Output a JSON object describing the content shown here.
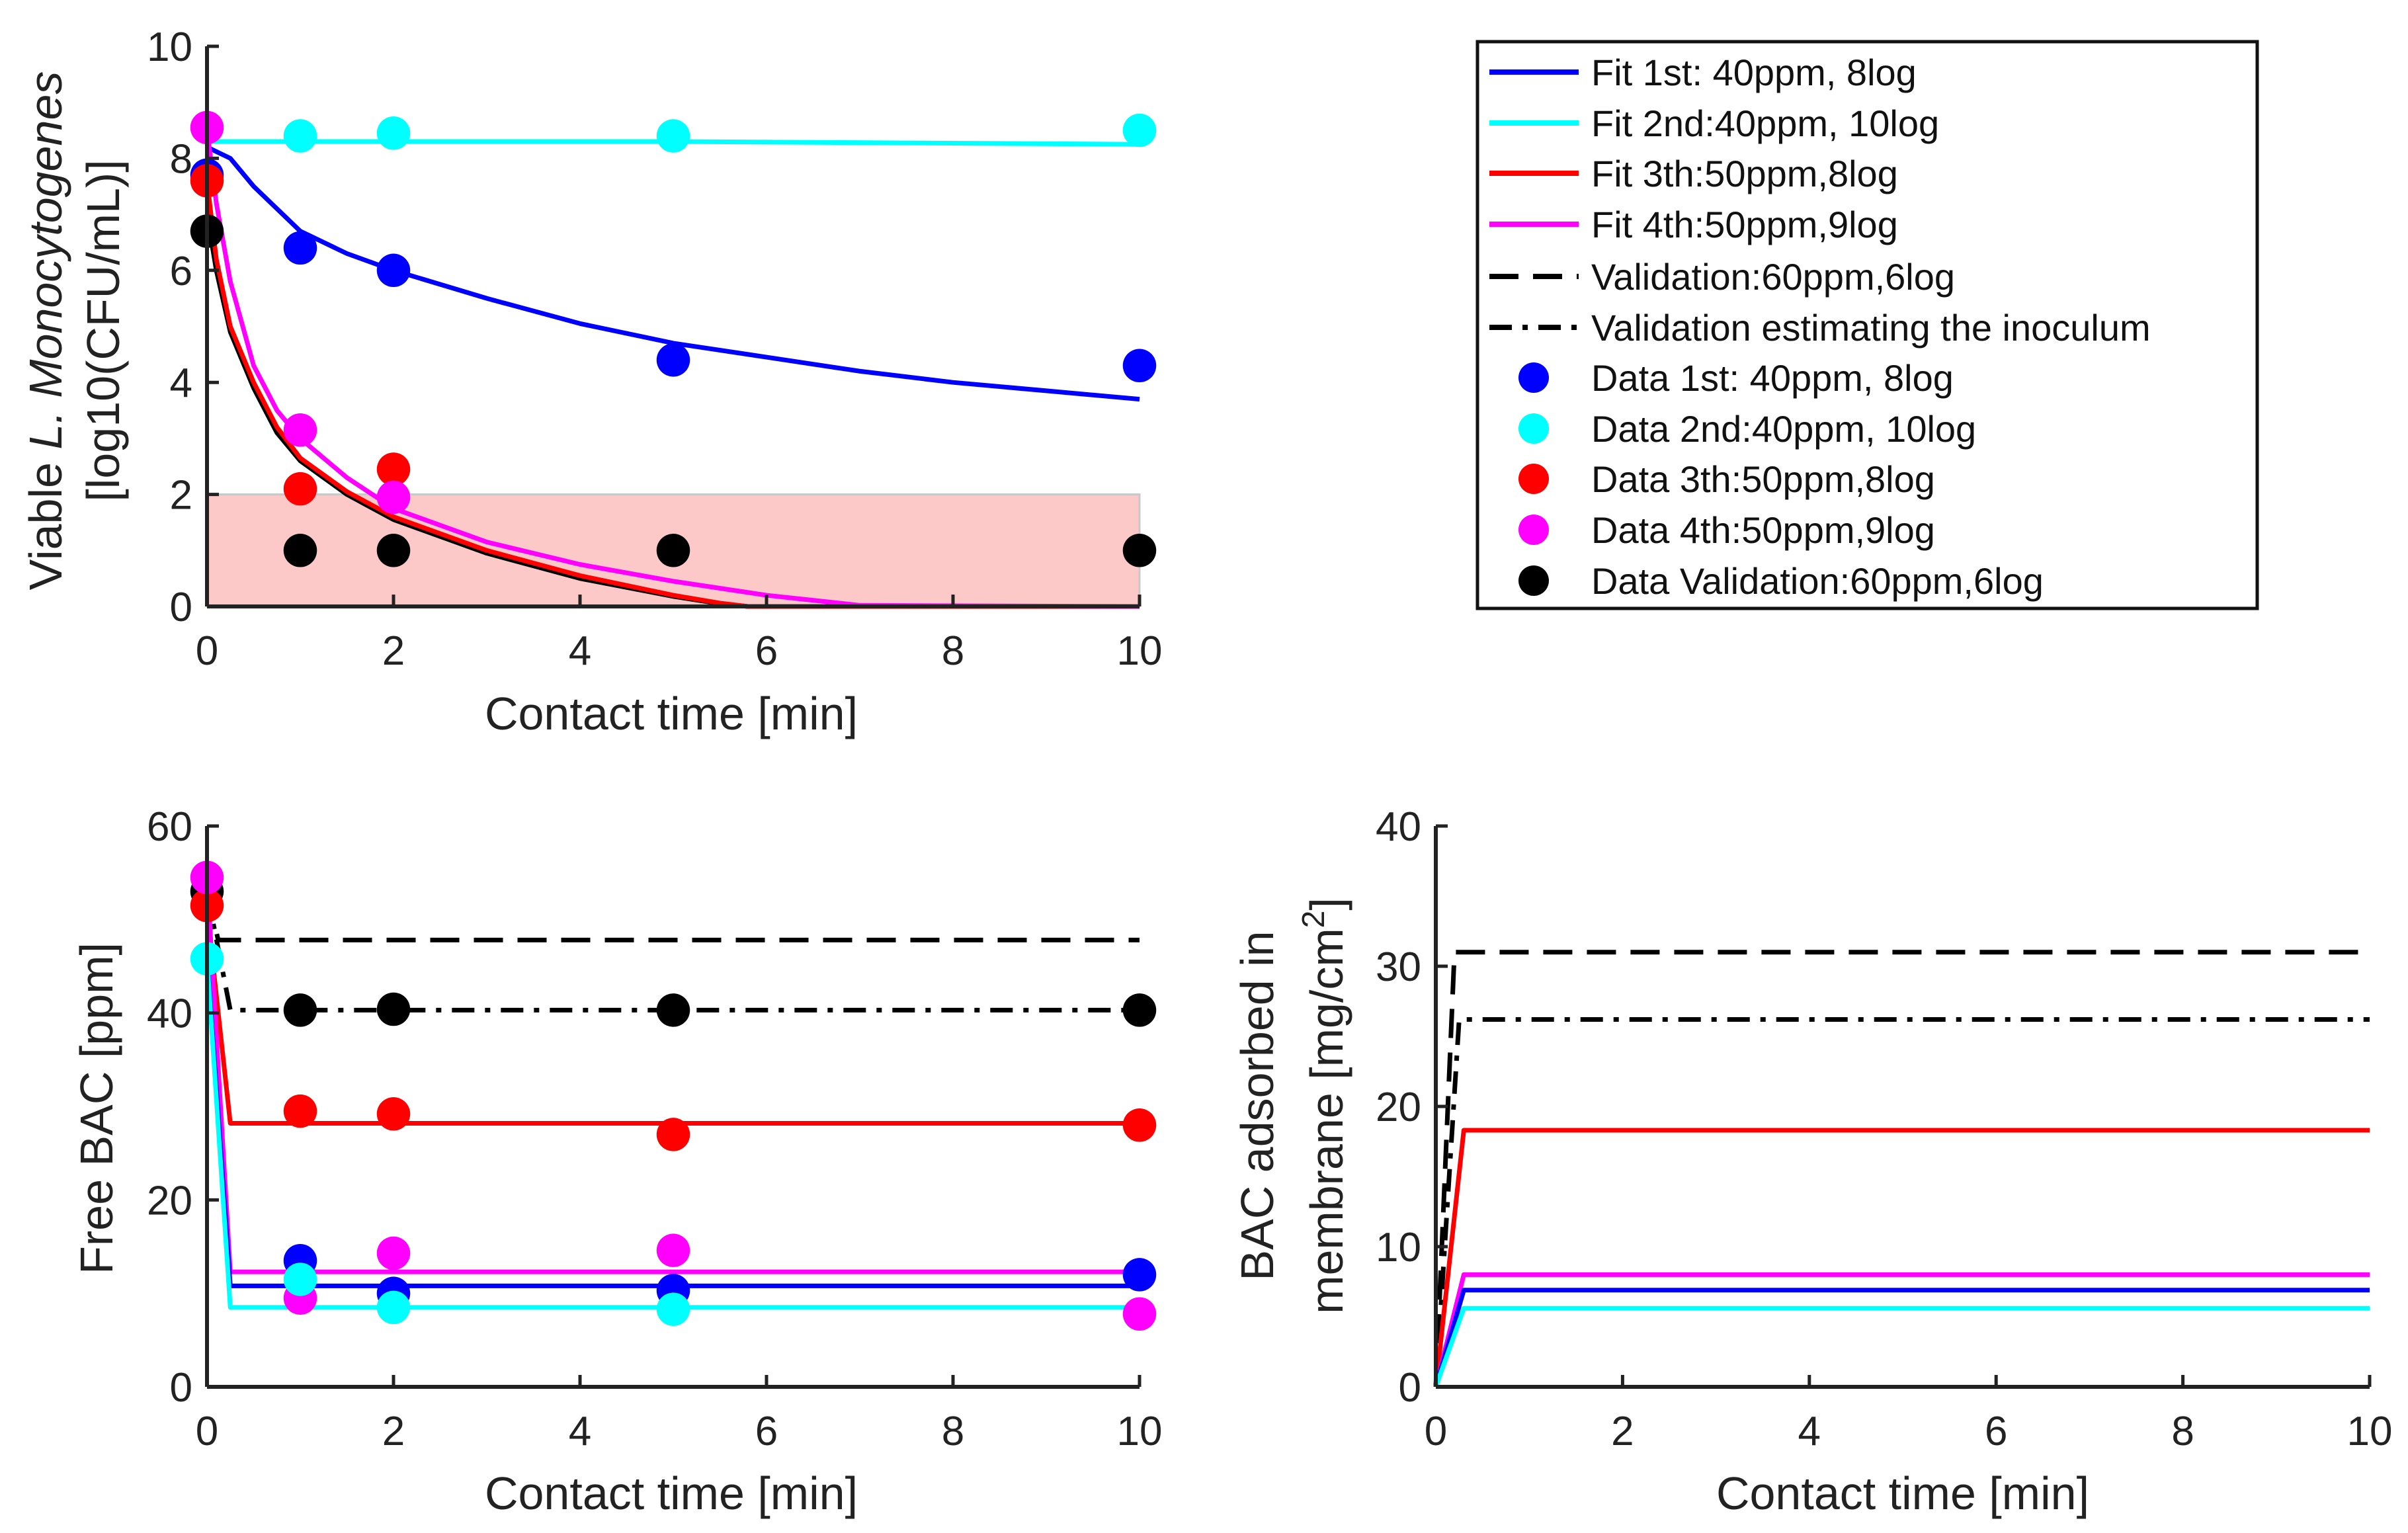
{
  "colors": {
    "blue": "#0000ff",
    "cyan": "#00ffff",
    "red": "#ff0000",
    "magenta": "#ff00ff",
    "black": "#000000",
    "shade": "#fcc8c8"
  },
  "legend": [
    {
      "label": "Fit 1st: 40ppm, 8log",
      "kind": "line",
      "color": "#0000ff",
      "dash": "solid"
    },
    {
      "label": "Fit 2nd:40ppm, 10log",
      "kind": "line",
      "color": "#00ffff",
      "dash": "solid"
    },
    {
      "label": "Fit 3th:50ppm,8log",
      "kind": "line",
      "color": "#ff0000",
      "dash": "solid"
    },
    {
      "label": "Fit 4th:50ppm,9log",
      "kind": "line",
      "color": "#ff00ff",
      "dash": "solid"
    },
    {
      "label": "Validation:60ppm,6log",
      "kind": "line",
      "color": "#000000",
      "dash": "dashed"
    },
    {
      "label": "Validation estimating the inoculum",
      "kind": "line",
      "color": "#000000",
      "dash": "dashdot"
    },
    {
      "label": "Data 1st: 40ppm, 8log",
      "kind": "marker",
      "color": "#0000ff"
    },
    {
      "label": "Data 2nd:40ppm, 10log",
      "kind": "marker",
      "color": "#00ffff"
    },
    {
      "label": "Data 3th:50ppm,8log",
      "kind": "marker",
      "color": "#ff0000"
    },
    {
      "label": "Data 4th:50ppm,9log",
      "kind": "marker",
      "color": "#ff00ff"
    },
    {
      "label": "Data Validation:60ppm,6log",
      "kind": "marker",
      "color": "#000000"
    }
  ],
  "chart_data": [
    {
      "type": "line",
      "id": "viable",
      "xlabel": "Contact time [min]",
      "ylabel_line1_plain": "Viable",
      "ylabel_line1_italic": "L. Monocytogenes",
      "ylabel_line2": "[log10(CFU/mL)]",
      "xlim": [
        0,
        10
      ],
      "ylim": [
        0,
        10
      ],
      "xticks": [
        0,
        2,
        4,
        6,
        8,
        10
      ],
      "yticks": [
        0,
        2,
        4,
        6,
        8,
        10
      ],
      "shaded_region": {
        "x": [
          0,
          10
        ],
        "y": [
          0,
          2
        ]
      },
      "lines": [
        {
          "name": "Fit 1st",
          "color": "#0000ff",
          "dash": "solid",
          "x": [
            0,
            0.25,
            0.5,
            1,
            1.5,
            2,
            3,
            4,
            5,
            6,
            7,
            8,
            9,
            10
          ],
          "y": [
            8.2,
            8.0,
            7.5,
            6.7,
            6.3,
            6.0,
            5.5,
            5.05,
            4.7,
            4.45,
            4.2,
            4.0,
            3.85,
            3.7
          ]
        },
        {
          "name": "Fit 2nd",
          "color": "#00ffff",
          "dash": "solid",
          "x": [
            0,
            5,
            10
          ],
          "y": [
            8.3,
            8.3,
            8.25
          ]
        },
        {
          "name": "Validation",
          "color": "#000000",
          "dash": "solid",
          "x": [
            0,
            0.1,
            0.25,
            0.5,
            0.75,
            1,
            1.5,
            2,
            3,
            4,
            5,
            5.5,
            5.8,
            10
          ],
          "y": [
            7.0,
            6.0,
            4.9,
            3.9,
            3.1,
            2.6,
            2.0,
            1.55,
            0.95,
            0.5,
            0.18,
            0.05,
            0,
            0
          ]
        },
        {
          "name": "Fit 3th",
          "color": "#ff0000",
          "dash": "solid",
          "x": [
            0,
            0.1,
            0.25,
            0.5,
            0.75,
            1,
            1.5,
            2,
            3,
            4,
            5,
            5.5,
            5.8,
            10
          ],
          "y": [
            7.6,
            6.2,
            5.0,
            4.0,
            3.2,
            2.65,
            2.05,
            1.6,
            1.0,
            0.55,
            0.2,
            0.06,
            0,
            0
          ]
        },
        {
          "name": "Fit 4th",
          "color": "#ff00ff",
          "dash": "solid",
          "x": [
            0,
            0.1,
            0.25,
            0.5,
            0.75,
            1,
            1.5,
            2,
            3,
            4,
            5,
            6,
            7,
            10
          ],
          "y": [
            8.5,
            7.2,
            5.8,
            4.3,
            3.5,
            3.0,
            2.3,
            1.75,
            1.15,
            0.75,
            0.45,
            0.2,
            0.02,
            0
          ]
        }
      ],
      "points": [
        {
          "name": "Data 1st",
          "color": "#0000ff",
          "x": [
            0,
            1,
            2,
            5,
            10
          ],
          "y": [
            7.7,
            6.4,
            6.0,
            4.4,
            4.3
          ]
        },
        {
          "name": "Data 2nd",
          "color": "#00ffff",
          "x": [
            1,
            2,
            5,
            10
          ],
          "y": [
            8.4,
            8.45,
            8.4,
            8.5
          ]
        },
        {
          "name": "Data 3th",
          "color": "#ff0000",
          "x": [
            0,
            1,
            2
          ],
          "y": [
            7.6,
            2.1,
            2.45
          ]
        },
        {
          "name": "Data 4th",
          "color": "#ff00ff",
          "x": [
            0,
            1,
            2
          ],
          "y": [
            8.55,
            3.15,
            1.95
          ]
        },
        {
          "name": "Data Validation",
          "color": "#000000",
          "x": [
            0,
            1,
            2,
            5,
            10
          ],
          "y": [
            6.7,
            1.0,
            1.0,
            1.0,
            1.0
          ]
        }
      ]
    },
    {
      "type": "line",
      "id": "freebac",
      "xlabel": "Contact time [min]",
      "ylabel": "Free BAC [ppm]",
      "xlim": [
        0,
        10
      ],
      "ylim": [
        0,
        60
      ],
      "xticks": [
        0,
        2,
        4,
        6,
        8,
        10
      ],
      "yticks": [
        0,
        20,
        40,
        60
      ],
      "lines": [
        {
          "name": "Validation",
          "color": "#000000",
          "dash": "dashed",
          "x": [
            0,
            0.12,
            10
          ],
          "y": [
            53,
            47.8,
            47.8
          ]
        },
        {
          "name": "Validation estimating the inoculum",
          "color": "#000000",
          "dash": "dashdot",
          "x": [
            0,
            0.25,
            10
          ],
          "y": [
            53,
            40.3,
            40.3
          ]
        },
        {
          "name": "Fit 3th",
          "color": "#ff0000",
          "dash": "solid",
          "x": [
            0,
            0.25,
            10
          ],
          "y": [
            51,
            28.2,
            28.2
          ]
        },
        {
          "name": "Fit 4th",
          "color": "#ff00ff",
          "dash": "solid",
          "x": [
            0,
            0.25,
            10
          ],
          "y": [
            54.5,
            12.3,
            12.3
          ]
        },
        {
          "name": "Fit 1st",
          "color": "#0000ff",
          "dash": "solid",
          "x": [
            0,
            0.25,
            10
          ],
          "y": [
            46,
            10.8,
            10.8
          ]
        },
        {
          "name": "Fit 2nd",
          "color": "#00ffff",
          "dash": "solid",
          "x": [
            0,
            0.25,
            10
          ],
          "y": [
            45.8,
            8.5,
            8.5
          ]
        }
      ],
      "points": [
        {
          "name": "Data Validation",
          "color": "#000000",
          "x": [
            0,
            1,
            2,
            5,
            10
          ],
          "y": [
            53,
            40.3,
            40.4,
            40.3,
            40.3
          ]
        },
        {
          "name": "Data 3th",
          "color": "#ff0000",
          "x": [
            0,
            1,
            2,
            5,
            10
          ],
          "y": [
            51.5,
            29.5,
            29.2,
            27,
            28
          ]
        },
        {
          "name": "Data 1st",
          "color": "#0000ff",
          "x": [
            1,
            2,
            5,
            10
          ],
          "y": [
            13.5,
            10,
            10.3,
            12
          ]
        },
        {
          "name": "Data 4th",
          "color": "#ff00ff",
          "x": [
            0,
            1,
            2,
            5,
            10
          ],
          "y": [
            54.5,
            9.5,
            14.3,
            14.6,
            7.8
          ]
        },
        {
          "name": "Data 2nd",
          "color": "#00ffff",
          "x": [
            0,
            1,
            2,
            5
          ],
          "y": [
            45.8,
            11.5,
            8.5,
            8.3
          ]
        }
      ]
    },
    {
      "type": "line",
      "id": "adsorbed",
      "xlabel": "Contact time [min]",
      "ylabel_line1": "BAC adsorbed in",
      "ylabel_line2": "membrane [mg/cm",
      "ylabel_sup": "2",
      "ylabel_close": "]",
      "xlim": [
        0,
        10
      ],
      "ylim": [
        0,
        40
      ],
      "xticks": [
        0,
        2,
        4,
        6,
        8,
        10
      ],
      "yticks": [
        0,
        10,
        20,
        30,
        40
      ],
      "lines": [
        {
          "name": "Validation",
          "color": "#000000",
          "dash": "dashed",
          "x": [
            0,
            0.2,
            10
          ],
          "y": [
            0,
            31,
            31
          ]
        },
        {
          "name": "Validation estimating the inoculum",
          "color": "#000000",
          "dash": "dashdot",
          "x": [
            0,
            0.25,
            10
          ],
          "y": [
            0,
            26.2,
            26.2
          ]
        },
        {
          "name": "Fit 3th",
          "color": "#ff0000",
          "dash": "solid",
          "x": [
            0,
            0.3,
            10
          ],
          "y": [
            0,
            18.3,
            18.3
          ]
        },
        {
          "name": "Fit 4th",
          "color": "#ff00ff",
          "dash": "solid",
          "x": [
            0,
            0.3,
            10
          ],
          "y": [
            0,
            8.0,
            8.0
          ]
        },
        {
          "name": "Fit 1st",
          "color": "#0000ff",
          "dash": "solid",
          "x": [
            0,
            0.3,
            10
          ],
          "y": [
            0,
            6.9,
            6.9
          ]
        },
        {
          "name": "Fit 2nd",
          "color": "#00ffff",
          "dash": "solid",
          "x": [
            0,
            0.3,
            10
          ],
          "y": [
            0,
            5.6,
            5.6
          ]
        }
      ],
      "points": []
    }
  ]
}
